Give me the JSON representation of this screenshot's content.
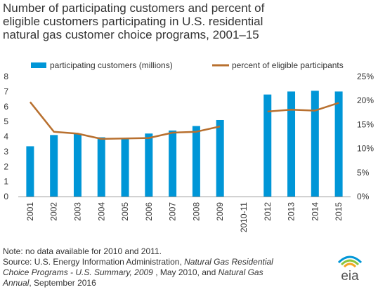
{
  "title_lines": [
    "Number of participating customers and percent of",
    "eligible customers participating in U.S. residential",
    "natural gas customer choice programs, 2001–15"
  ],
  "chart_data": {
    "type": "bar",
    "categories": [
      "2001",
      "2002",
      "2003",
      "2004",
      "2005",
      "2006",
      "2007",
      "2008",
      "2009",
      "2010-11",
      "2012",
      "2013",
      "2014",
      "2015"
    ],
    "series": [
      {
        "name": "participating customers (millions)",
        "type": "bar",
        "axis": "left",
        "color": "#0096d7",
        "values": [
          3.35,
          4.1,
          4.2,
          3.95,
          3.9,
          4.2,
          4.4,
          4.7,
          5.1,
          null,
          6.8,
          7.0,
          7.05,
          7.0
        ]
      },
      {
        "name": "percent of eligible participants",
        "type": "line",
        "axis": "right",
        "color": "#b8702f",
        "values": [
          19.7,
          13.5,
          13.1,
          12.0,
          12.1,
          12.2,
          13.3,
          13.5,
          14.6,
          null,
          17.7,
          18.1,
          17.9,
          19.5
        ]
      }
    ],
    "y_left": {
      "min": 0,
      "max": 8,
      "ticks": [
        "0",
        "1",
        "2",
        "3",
        "4",
        "5",
        "6",
        "7",
        "8"
      ]
    },
    "y_right": {
      "min": 0,
      "max": 25,
      "ticks": [
        "0%",
        "5%",
        "10%",
        "15%",
        "20%",
        "25%"
      ]
    },
    "grid": false,
    "legend_position": "top"
  },
  "notes": {
    "line1": "Note: no data available for 2010 and 2011.",
    "line2_a": "Source: U.S. Energy Information  Administration, ",
    "line2_b": "Natural Gas Residential",
    "line3_a": "Choice Programs - U.S. Summary,  2009 ",
    "line3_b": ", May 2010, and ",
    "line3_c": "Natural Gas",
    "line4_a": "Annual",
    "line4_b": ", September 2016"
  },
  "logo": {
    "text": "eia",
    "colors": [
      "#0096d7",
      "#8dc63f",
      "#f5a623"
    ]
  }
}
